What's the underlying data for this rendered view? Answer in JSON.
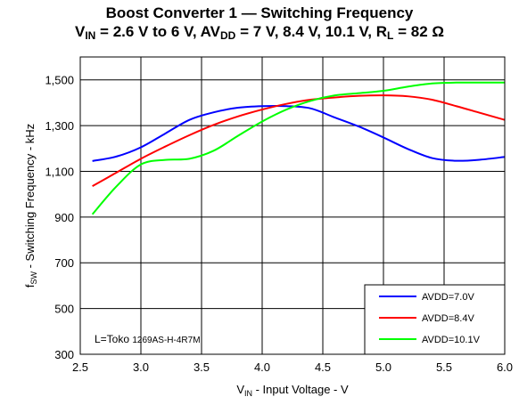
{
  "chart_data": {
    "type": "line",
    "title": "Boost Converter 1 — Switching Frequency",
    "subtitle": {
      "vin_symbol": "V",
      "vin_sub": "IN",
      "vin_text": " = 2.6 V to 6 V, AV",
      "avdd_sub": "DD",
      "avdd_text": " = 7 V, 8.4 V, 10.1 V, R",
      "rl_sub": "L",
      "rl_text": " = 82 Ω"
    },
    "xlabel": {
      "symbol": "V",
      "sub": "IN",
      "text": " - Input Voltage - V"
    },
    "ylabel": {
      "symbol": "f",
      "sub": "SW",
      "text": " - Switching Frequency - kHz"
    },
    "xlim": [
      2.5,
      6.0
    ],
    "ylim": [
      300,
      1600
    ],
    "x_ticks": [
      2.5,
      3.0,
      3.5,
      4.0,
      4.5,
      5.0,
      5.5,
      6.0
    ],
    "x_tick_labels": [
      "2.5",
      "3.0",
      "3.5",
      "4.0",
      "4.5",
      "5.0",
      "5.5",
      "6.0"
    ],
    "y_ticks": [
      300,
      500,
      700,
      900,
      1100,
      1300,
      1500
    ],
    "y_tick_labels": [
      "300",
      "500",
      "700",
      "900",
      "1,100",
      "1,300",
      "1,500"
    ],
    "grid": true,
    "legend_position": "bottom-right",
    "annotation": {
      "prefix": "L=Toko ",
      "part": "1269AS-H-4R7M"
    },
    "series": [
      {
        "name": "AVDD=7.0V",
        "color": "#0000ff",
        "x": [
          2.6,
          2.8,
          3.0,
          3.2,
          3.4,
          3.6,
          3.8,
          4.0,
          4.2,
          4.4,
          4.6,
          4.8,
          5.0,
          5.2,
          5.4,
          5.6,
          5.8,
          6.0
        ],
        "y": [
          1145,
          1165,
          1205,
          1265,
          1325,
          1358,
          1378,
          1385,
          1385,
          1375,
          1335,
          1295,
          1248,
          1198,
          1158,
          1146,
          1151,
          1163
        ]
      },
      {
        "name": "AVDD=8.4V",
        "color": "#ff0000",
        "x": [
          2.6,
          2.8,
          3.0,
          3.2,
          3.4,
          3.6,
          3.8,
          4.0,
          4.2,
          4.4,
          4.6,
          4.8,
          5.0,
          5.2,
          5.4,
          5.6,
          5.8,
          6.0
        ],
        "y": [
          1035,
          1095,
          1155,
          1208,
          1258,
          1303,
          1340,
          1370,
          1395,
          1413,
          1423,
          1430,
          1432,
          1428,
          1413,
          1385,
          1355,
          1325
        ]
      },
      {
        "name": "AVDD=10.1V",
        "color": "#00ff00",
        "x": [
          2.6,
          2.8,
          3.0,
          3.2,
          3.4,
          3.6,
          3.8,
          4.0,
          4.2,
          4.4,
          4.6,
          4.8,
          5.0,
          5.2,
          5.4,
          5.6,
          5.8,
          6.0
        ],
        "y": [
          912,
          1035,
          1130,
          1150,
          1155,
          1190,
          1255,
          1318,
          1370,
          1408,
          1432,
          1442,
          1452,
          1470,
          1484,
          1488,
          1488,
          1488
        ]
      }
    ]
  }
}
